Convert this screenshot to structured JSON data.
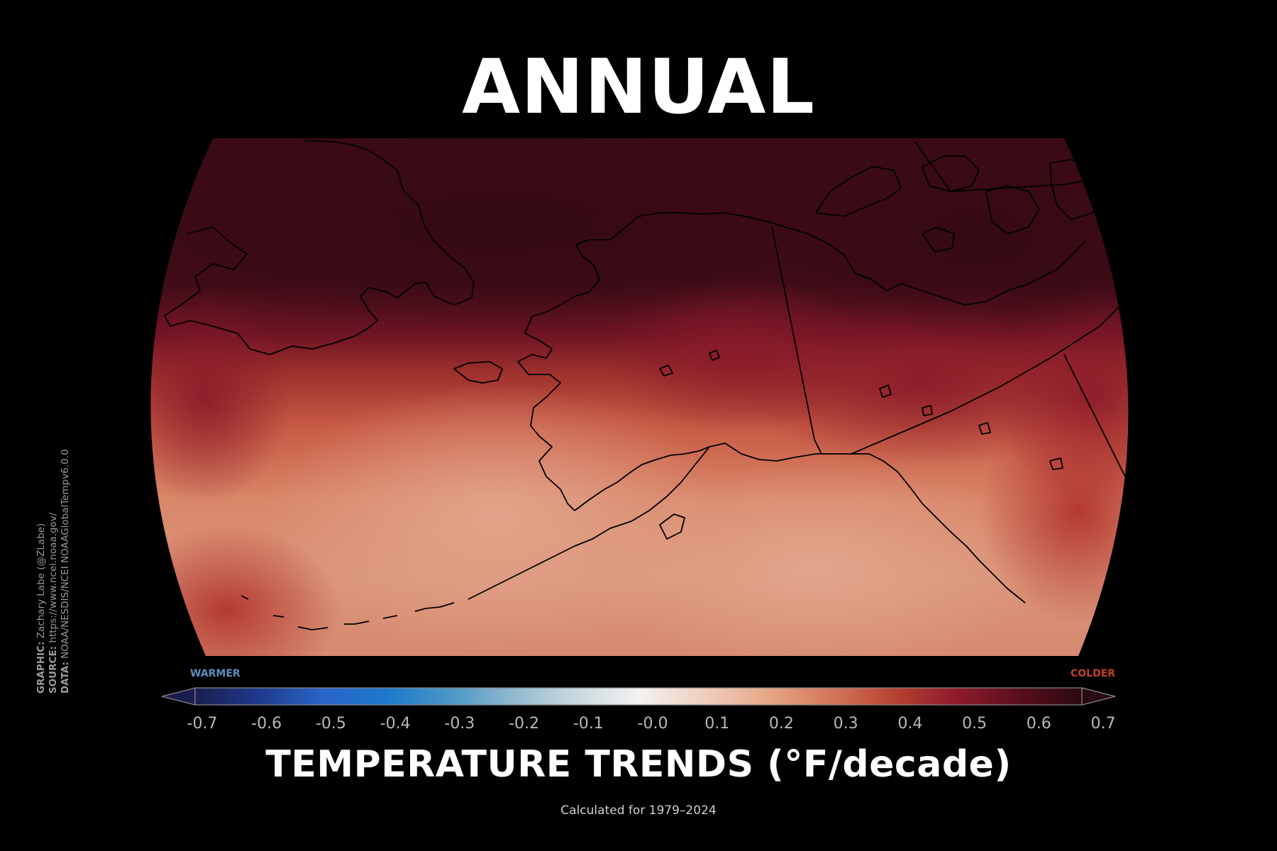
{
  "title": "ANNUAL",
  "credits": {
    "graphic_label": "GRAPHIC:",
    "graphic_value": "Zachary Labe (@ZLabe)",
    "source_label": "SOURCE:",
    "source_value": "https://www.ncei.noaa.gov/",
    "data_label": "DATA:",
    "data_value": "NOAA/NESDIS/NCEI NOAAGlobalTempv6.0.0"
  },
  "colorbar": {
    "left_end_label": "WARMER",
    "right_end_label": "COLDER",
    "left_end_color": "#5b8fc0",
    "right_end_color": "#c0402b",
    "tick_labels": [
      "-0.7",
      "-0.6",
      "-0.5",
      "-0.4",
      "-0.3",
      "-0.2",
      "-0.1",
      "-0.0",
      "0.1",
      "0.2",
      "0.3",
      "0.4",
      "0.5",
      "0.6",
      "0.7"
    ],
    "stops": [
      "#1a1d4f",
      "#1f3a8a",
      "#2a64c7",
      "#1c78cd",
      "#4a95c6",
      "#8fb8cf",
      "#c8d8dd",
      "#f2f2f2",
      "#f0d0c0",
      "#e7a98a",
      "#d5795c",
      "#b84433",
      "#8e1b2c",
      "#5a0f1d",
      "#2a0810"
    ]
  },
  "units_label": "TEMPERATURE TRENDS (°F/decade)",
  "period_label": "Calculated for 1979–2024"
}
